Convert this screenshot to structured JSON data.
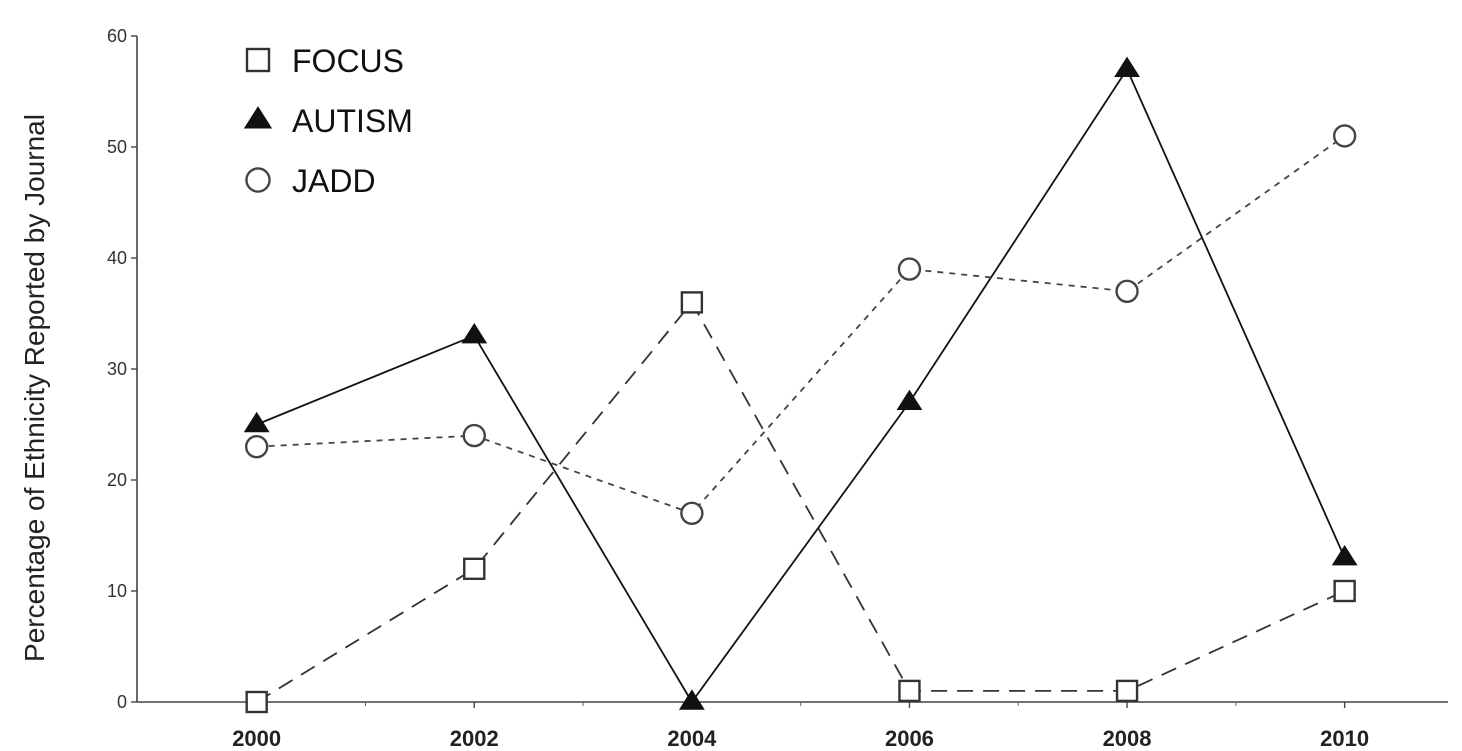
{
  "chart_data": {
    "type": "line",
    "title": "",
    "xlabel": "",
    "ylabel": "Percentage of Ethnicity Reported by Journal",
    "x": [
      2000,
      2002,
      2004,
      2006,
      2008,
      2010
    ],
    "xlim": [
      1998.9,
      2010.95
    ],
    "ylim": [
      0,
      60
    ],
    "yticks": [
      0,
      10,
      20,
      30,
      40,
      50,
      60
    ],
    "xtick_labels": [
      "2000",
      "2002",
      "2004",
      "2006",
      "2008",
      "2010"
    ],
    "ytick_labels": [
      "0",
      "10",
      "20",
      "30",
      "40",
      "50",
      "60"
    ],
    "legend_position": "top-left",
    "series": [
      {
        "name": "FOCUS",
        "marker": "square",
        "line": "long-dash",
        "color": "#333333",
        "values": [
          0,
          12,
          36,
          1,
          1,
          10
        ]
      },
      {
        "name": "AUTISM",
        "marker": "triangle",
        "line": "solid",
        "color": "#111111",
        "values": [
          25,
          33,
          0,
          27,
          57,
          13
        ]
      },
      {
        "name": "JADD",
        "marker": "circle",
        "line": "dotted",
        "color": "#444444",
        "values": [
          23,
          24,
          17,
          39,
          37,
          51
        ]
      }
    ]
  }
}
